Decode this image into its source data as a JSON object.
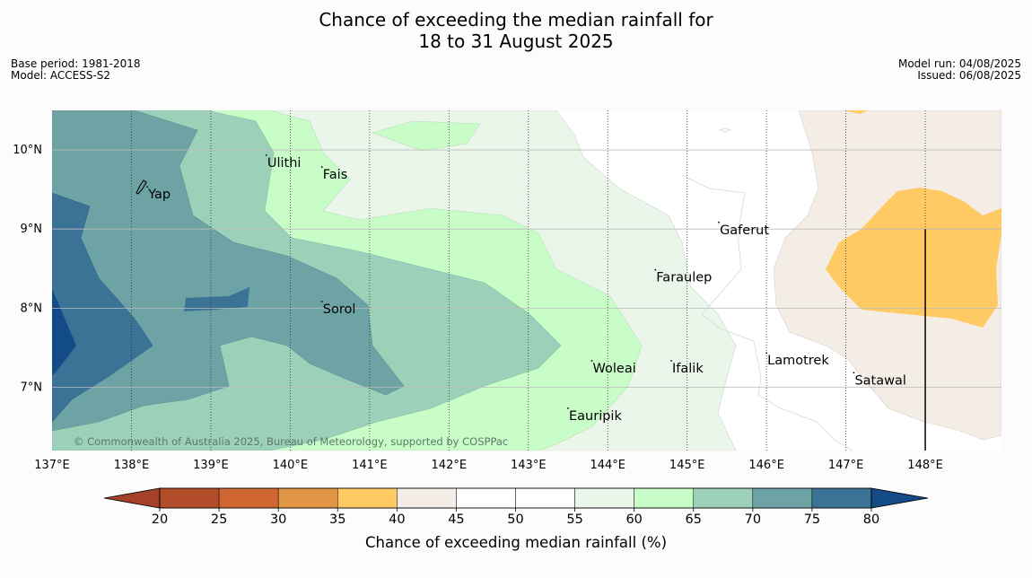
{
  "title": {
    "line1": "Chance of exceeding the median rainfall for",
    "line2": "18 to 31 August 2025"
  },
  "meta_left": {
    "base_period": "Base period: 1981-2018",
    "model": "Model: ACCESS-S2"
  },
  "meta_right": {
    "model_run": "Model run: 04/08/2025",
    "issued": "Issued: 06/08/2025"
  },
  "map": {
    "lon_labels": [
      "137°E",
      "138°E",
      "139°E",
      "140°E",
      "141°E",
      "142°E",
      "143°E",
      "144°E",
      "145°E",
      "146°E",
      "147°E",
      "148°E"
    ],
    "lat_labels": [
      "10°N",
      "9°N",
      "8°N",
      "7°N"
    ],
    "places": [
      {
        "name": "Yap",
        "lon": 138.2,
        "lat": 9.5
      },
      {
        "name": "Ulithi",
        "lon": 139.7,
        "lat": 9.9
      },
      {
        "name": "Fais",
        "lon": 140.4,
        "lat": 9.75
      },
      {
        "name": "Gaferut",
        "lon": 145.4,
        "lat": 9.05
      },
      {
        "name": "Faraulep",
        "lon": 144.6,
        "lat": 8.45
      },
      {
        "name": "Sorol",
        "lon": 140.4,
        "lat": 8.05
      },
      {
        "name": "Lamotrek",
        "lon": 146.0,
        "lat": 7.4
      },
      {
        "name": "Woleai",
        "lon": 143.8,
        "lat": 7.3
      },
      {
        "name": "Ifalik",
        "lon": 144.8,
        "lat": 7.3
      },
      {
        "name": "Satawal",
        "lon": 147.1,
        "lat": 7.15
      },
      {
        "name": "Eauripik",
        "lon": 143.5,
        "lat": 6.7
      }
    ],
    "copyright": "© Commonwealth of Australia 2025, Bureau of Meteorology, supported by COSPPac"
  },
  "colorbar": {
    "title": "Chance of exceeding median rainfall (%)",
    "ticks": [
      "20",
      "25",
      "30",
      "35",
      "40",
      "45",
      "50",
      "55",
      "60",
      "65",
      "70",
      "75",
      "80"
    ],
    "colors": [
      "#a5402a",
      "#b34c29",
      "#d06632",
      "#e19646",
      "#ffca64",
      "#f3ede6",
      "#ffffff",
      "#ffffff",
      "#eaf6ea",
      "#c9fdc8",
      "#9dd0b9",
      "#6da3a5",
      "#3b7397",
      "#134b87"
    ]
  }
}
